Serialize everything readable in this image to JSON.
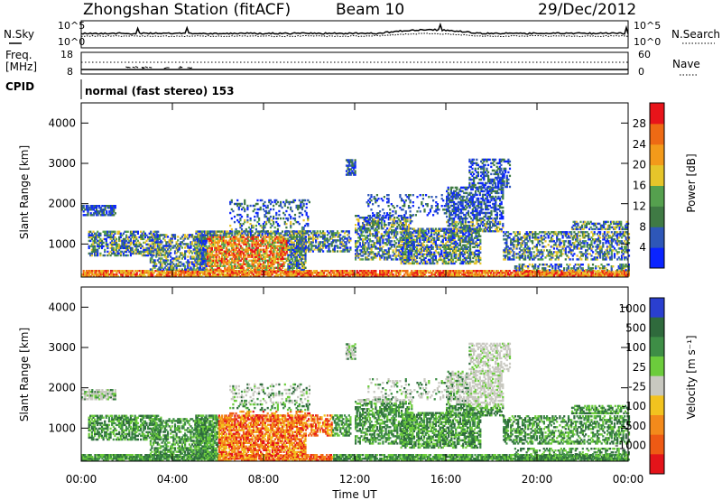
{
  "header": {
    "title": "Zhongshan Station (fitACF)",
    "beam": "Beam 10",
    "date": "29/Dec/2012"
  },
  "noise_panel": {
    "left_label": "N.Sky",
    "right_label": "N.Search",
    "left_ticks": [
      "10^5",
      "10^0"
    ],
    "right_ticks": [
      "10^5",
      "10^0"
    ]
  },
  "freq_panel": {
    "left_label_1": "Freq.",
    "left_label_2": "[MHz]",
    "right_label": "Nave",
    "left_ticks": [
      "18",
      "8"
    ],
    "right_ticks": [
      "60",
      "0"
    ]
  },
  "cpid": {
    "label": "CPID",
    "value": "normal (fast stereo) 153"
  },
  "chart_data": [
    {
      "type": "heatmap",
      "ylabel": "Slant Range [km]",
      "yticks": [
        "1000",
        "2000",
        "3000",
        "4000"
      ],
      "ylim": [
        180,
        4500
      ],
      "colorbar": {
        "label": "Power [dB]",
        "ticks": [
          "4",
          "8",
          "12",
          "16",
          "20",
          "24",
          "28"
        ],
        "colors": [
          "#0a24ff",
          "#2e57b8",
          "#3f7a44",
          "#55a04e",
          "#e6c52a",
          "#f39a1a",
          "#ee6a14",
          "#e8141a"
        ]
      }
    },
    {
      "type": "heatmap",
      "xlabel": "Time UT",
      "ylabel": "Slant Range [km]",
      "yticks": [
        "1000",
        "2000",
        "3000",
        "4000"
      ],
      "ylim": [
        180,
        4500
      ],
      "xticks": [
        "00:00",
        "04:00",
        "08:00",
        "12:00",
        "16:00",
        "20:00",
        "00:00"
      ],
      "colorbar": {
        "label": "Velocity [m s⁻¹]",
        "ticks": [
          "1000",
          "500",
          "100",
          "25",
          "-25",
          "-100",
          "-500",
          "-1000"
        ],
        "colors": [
          "#2a3fcf",
          "#2f6a3c",
          "#3e8e46",
          "#6ccc3c",
          "#c8c8c0",
          "#f2c31f",
          "#f38a1b",
          "#ee5a14",
          "#e4141a"
        ]
      }
    }
  ]
}
